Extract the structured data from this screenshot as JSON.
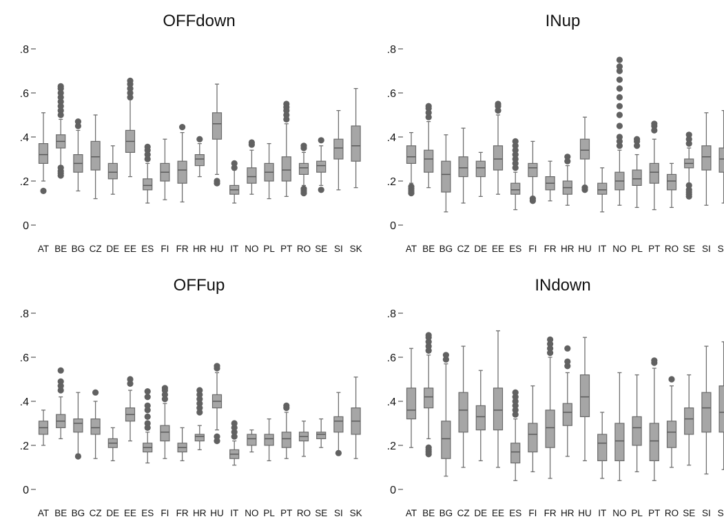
{
  "chart_data": [
    {
      "type": "box",
      "title": "OFFdown",
      "categories": [
        "AT",
        "BE",
        "BG",
        "CZ",
        "DE",
        "EE",
        "ES",
        "FI",
        "FR",
        "HR",
        "HU",
        "IT",
        "NO",
        "PL",
        "PT",
        "RO",
        "SE",
        "SI",
        "SK"
      ],
      "ylim": [
        0,
        0.8
      ],
      "yticks": [
        0,
        0.2,
        0.4,
        0.6,
        0.8
      ],
      "ytick_labels": [
        "0",
        ".2",
        ".4",
        ".6",
        ".8"
      ],
      "grid": false,
      "box_color": "#a6a6a6",
      "outlier_color": "#616161",
      "boxes": [
        {
          "cat": "AT",
          "low": 0.2,
          "q1": 0.28,
          "med": 0.32,
          "q3": 0.37,
          "high": 0.51,
          "out": [
            0.155
          ]
        },
        {
          "cat": "BE",
          "low": 0.27,
          "q1": 0.35,
          "med": 0.38,
          "q3": 0.41,
          "high": 0.48,
          "out": [
            0.5,
            0.52,
            0.54,
            0.56,
            0.58,
            0.6,
            0.62,
            0.63,
            0.26,
            0.245,
            0.235,
            0.225
          ]
        },
        {
          "cat": "BG",
          "low": 0.155,
          "q1": 0.24,
          "med": 0.28,
          "q3": 0.32,
          "high": 0.43,
          "out": [
            0.45,
            0.47
          ]
        },
        {
          "cat": "CZ",
          "low": 0.12,
          "q1": 0.25,
          "med": 0.31,
          "q3": 0.38,
          "high": 0.5,
          "out": []
        },
        {
          "cat": "DE",
          "low": 0.14,
          "q1": 0.21,
          "med": 0.24,
          "q3": 0.28,
          "high": 0.36,
          "out": []
        },
        {
          "cat": "EE",
          "low": 0.22,
          "q1": 0.33,
          "med": 0.38,
          "q3": 0.43,
          "high": 0.57,
          "out": [
            0.58,
            0.6,
            0.62,
            0.64,
            0.655
          ]
        },
        {
          "cat": "ES",
          "low": 0.1,
          "q1": 0.16,
          "med": 0.18,
          "q3": 0.21,
          "high": 0.28,
          "out": [
            0.3,
            0.32,
            0.34,
            0.355
          ]
        },
        {
          "cat": "FI",
          "low": 0.115,
          "q1": 0.2,
          "med": 0.24,
          "q3": 0.28,
          "high": 0.39,
          "out": []
        },
        {
          "cat": "FR",
          "low": 0.105,
          "q1": 0.19,
          "med": 0.25,
          "q3": 0.29,
          "high": 0.42,
          "out": [
            0.445
          ]
        },
        {
          "cat": "HR",
          "low": 0.22,
          "q1": 0.27,
          "med": 0.3,
          "q3": 0.32,
          "high": 0.37,
          "out": [
            0.39
          ]
        },
        {
          "cat": "HU",
          "low": 0.23,
          "q1": 0.39,
          "med": 0.46,
          "q3": 0.51,
          "high": 0.64,
          "out": [
            0.2,
            0.19
          ]
        },
        {
          "cat": "IT",
          "low": 0.1,
          "q1": 0.14,
          "med": 0.16,
          "q3": 0.18,
          "high": 0.25,
          "out": [
            0.26,
            0.28
          ]
        },
        {
          "cat": "NO",
          "low": 0.14,
          "q1": 0.19,
          "med": 0.22,
          "q3": 0.26,
          "high": 0.34,
          "out": [
            0.365,
            0.375
          ]
        },
        {
          "cat": "PL",
          "low": 0.12,
          "q1": 0.2,
          "med": 0.24,
          "q3": 0.28,
          "high": 0.37,
          "out": []
        },
        {
          "cat": "PT",
          "low": 0.13,
          "q1": 0.2,
          "med": 0.25,
          "q3": 0.31,
          "high": 0.46,
          "out": [
            0.48,
            0.5,
            0.52,
            0.535,
            0.55
          ]
        },
        {
          "cat": "RO",
          "low": 0.18,
          "q1": 0.23,
          "med": 0.26,
          "q3": 0.28,
          "high": 0.33,
          "out": [
            0.35,
            0.36,
            0.165,
            0.155,
            0.145
          ]
        },
        {
          "cat": "SE",
          "low": 0.18,
          "q1": 0.24,
          "med": 0.27,
          "q3": 0.29,
          "high": 0.36,
          "out": [
            0.385,
            0.16
          ]
        },
        {
          "cat": "SI",
          "low": 0.16,
          "q1": 0.3,
          "med": 0.35,
          "q3": 0.39,
          "high": 0.52,
          "out": []
        },
        {
          "cat": "SK",
          "low": 0.17,
          "q1": 0.29,
          "med": 0.36,
          "q3": 0.45,
          "high": 0.62,
          "out": []
        }
      ]
    },
    {
      "type": "box",
      "title": "INup",
      "categories": [
        "AT",
        "BE",
        "BG",
        "CZ",
        "DE",
        "EE",
        "ES",
        "FI",
        "FR",
        "HR",
        "HU",
        "IT",
        "NO",
        "PL",
        "PT",
        "RO",
        "SE",
        "SI",
        "SK"
      ],
      "ylim": [
        0,
        0.8
      ],
      "yticks": [
        0,
        0.2,
        0.4,
        0.6,
        0.8
      ],
      "ytick_labels": [
        "0",
        ".2",
        ".4",
        ".6",
        ".8"
      ],
      "grid": false,
      "box_color": "#a6a6a6",
      "outlier_color": "#616161",
      "boxes": [
        {
          "cat": "AT",
          "low": 0.19,
          "q1": 0.28,
          "med": 0.31,
          "q3": 0.36,
          "high": 0.42,
          "out": [
            0.175,
            0.165,
            0.155,
            0.145
          ]
        },
        {
          "cat": "BE",
          "low": 0.17,
          "q1": 0.24,
          "med": 0.3,
          "q3": 0.34,
          "high": 0.47,
          "out": [
            0.49,
            0.51,
            0.53,
            0.54
          ]
        },
        {
          "cat": "BG",
          "low": 0.06,
          "q1": 0.15,
          "med": 0.23,
          "q3": 0.29,
          "high": 0.41,
          "out": []
        },
        {
          "cat": "CZ",
          "low": 0.1,
          "q1": 0.22,
          "med": 0.26,
          "q3": 0.31,
          "high": 0.44,
          "out": []
        },
        {
          "cat": "DE",
          "low": 0.13,
          "q1": 0.22,
          "med": 0.26,
          "q3": 0.29,
          "high": 0.33,
          "out": []
        },
        {
          "cat": "EE",
          "low": 0.14,
          "q1": 0.25,
          "med": 0.3,
          "q3": 0.36,
          "high": 0.5,
          "out": [
            0.52,
            0.54,
            0.55
          ]
        },
        {
          "cat": "ES",
          "low": 0.07,
          "q1": 0.14,
          "med": 0.16,
          "q3": 0.19,
          "high": 0.24,
          "out": [
            0.26,
            0.28,
            0.3,
            0.32,
            0.34,
            0.36,
            0.38
          ]
        },
        {
          "cat": "FI",
          "low": 0.13,
          "q1": 0.22,
          "med": 0.26,
          "q3": 0.28,
          "high": 0.38,
          "out": [
            0.12,
            0.11
          ]
        },
        {
          "cat": "FR",
          "low": 0.11,
          "q1": 0.16,
          "med": 0.19,
          "q3": 0.22,
          "high": 0.29,
          "out": []
        },
        {
          "cat": "HR",
          "low": 0.09,
          "q1": 0.14,
          "med": 0.17,
          "q3": 0.2,
          "high": 0.27,
          "out": [
            0.29,
            0.31
          ]
        },
        {
          "cat": "HU",
          "low": 0.18,
          "q1": 0.3,
          "med": 0.34,
          "q3": 0.39,
          "high": 0.49,
          "out": [
            0.17,
            0.16
          ]
        },
        {
          "cat": "IT",
          "low": 0.06,
          "q1": 0.14,
          "med": 0.16,
          "q3": 0.19,
          "high": 0.26,
          "out": []
        },
        {
          "cat": "NO",
          "low": 0.09,
          "q1": 0.16,
          "med": 0.2,
          "q3": 0.24,
          "high": 0.34,
          "out": [
            0.36,
            0.38,
            0.4,
            0.45,
            0.5,
            0.54,
            0.58,
            0.62,
            0.66,
            0.7,
            0.72,
            0.75
          ]
        },
        {
          "cat": "PL",
          "low": 0.08,
          "q1": 0.18,
          "med": 0.21,
          "q3": 0.25,
          "high": 0.32,
          "out": [
            0.36,
            0.38,
            0.39
          ]
        },
        {
          "cat": "PT",
          "low": 0.07,
          "q1": 0.19,
          "med": 0.24,
          "q3": 0.28,
          "high": 0.39,
          "out": [
            0.43,
            0.45,
            0.46
          ]
        },
        {
          "cat": "RO",
          "low": 0.08,
          "q1": 0.16,
          "med": 0.2,
          "q3": 0.23,
          "high": 0.28,
          "out": []
        },
        {
          "cat": "SE",
          "low": 0.19,
          "q1": 0.26,
          "med": 0.28,
          "q3": 0.3,
          "high": 0.35,
          "out": [
            0.37,
            0.39,
            0.41,
            0.18,
            0.16,
            0.15,
            0.14,
            0.13
          ]
        },
        {
          "cat": "SI",
          "low": 0.09,
          "q1": 0.25,
          "med": 0.31,
          "q3": 0.36,
          "high": 0.51,
          "out": []
        },
        {
          "cat": "SK",
          "low": 0.1,
          "q1": 0.24,
          "med": 0.3,
          "q3": 0.35,
          "high": 0.52,
          "out": []
        }
      ]
    },
    {
      "type": "box",
      "title": "OFFup",
      "categories": [
        "AT",
        "BE",
        "BG",
        "CZ",
        "DE",
        "EE",
        "ES",
        "FI",
        "FR",
        "HR",
        "HU",
        "IT",
        "NO",
        "PL",
        "PT",
        "RO",
        "SE",
        "SI",
        "SK"
      ],
      "ylim": [
        0,
        0.8
      ],
      "yticks": [
        0,
        0.2,
        0.4,
        0.6,
        0.8
      ],
      "ytick_labels": [
        "0",
        ".2",
        ".4",
        ".6",
        ".8"
      ],
      "grid": false,
      "box_color": "#a6a6a6",
      "outlier_color": "#616161",
      "boxes": [
        {
          "cat": "AT",
          "low": 0.2,
          "q1": 0.25,
          "med": 0.28,
          "q3": 0.31,
          "high": 0.36,
          "out": []
        },
        {
          "cat": "BE",
          "low": 0.23,
          "q1": 0.28,
          "med": 0.31,
          "q3": 0.34,
          "high": 0.42,
          "out": [
            0.45,
            0.47,
            0.49,
            0.54
          ]
        },
        {
          "cat": "BG",
          "low": 0.16,
          "q1": 0.26,
          "med": 0.3,
          "q3": 0.32,
          "high": 0.44,
          "out": [
            0.15
          ]
        },
        {
          "cat": "CZ",
          "low": 0.14,
          "q1": 0.25,
          "med": 0.28,
          "q3": 0.32,
          "high": 0.4,
          "out": [
            0.44
          ]
        },
        {
          "cat": "DE",
          "low": 0.13,
          "q1": 0.19,
          "med": 0.21,
          "q3": 0.23,
          "high": 0.28,
          "out": []
        },
        {
          "cat": "EE",
          "low": 0.22,
          "q1": 0.31,
          "med": 0.34,
          "q3": 0.37,
          "high": 0.45,
          "out": [
            0.48,
            0.5
          ]
        },
        {
          "cat": "ES",
          "low": 0.12,
          "q1": 0.17,
          "med": 0.19,
          "q3": 0.21,
          "high": 0.26,
          "out": [
            0.28,
            0.3,
            0.33,
            0.36,
            0.38,
            0.42,
            0.445
          ]
        },
        {
          "cat": "FI",
          "low": 0.14,
          "q1": 0.22,
          "med": 0.26,
          "q3": 0.29,
          "high": 0.39,
          "out": [
            0.41,
            0.43,
            0.45,
            0.46
          ]
        },
        {
          "cat": "FR",
          "low": 0.13,
          "q1": 0.17,
          "med": 0.19,
          "q3": 0.21,
          "high": 0.28,
          "out": []
        },
        {
          "cat": "HR",
          "low": 0.18,
          "q1": 0.22,
          "med": 0.24,
          "q3": 0.25,
          "high": 0.29,
          "out": [
            0.35,
            0.37,
            0.39,
            0.41,
            0.43,
            0.45
          ]
        },
        {
          "cat": "HU",
          "low": 0.27,
          "q1": 0.37,
          "med": 0.4,
          "q3": 0.43,
          "high": 0.53,
          "out": [
            0.55,
            0.56,
            0.24,
            0.22
          ]
        },
        {
          "cat": "IT",
          "low": 0.11,
          "q1": 0.14,
          "med": 0.16,
          "q3": 0.18,
          "high": 0.22,
          "out": [
            0.24,
            0.26,
            0.28,
            0.3
          ]
        },
        {
          "cat": "NO",
          "low": 0.17,
          "q1": 0.2,
          "med": 0.23,
          "q3": 0.25,
          "high": 0.27,
          "out": []
        },
        {
          "cat": "PL",
          "low": 0.13,
          "q1": 0.2,
          "med": 0.23,
          "q3": 0.25,
          "high": 0.32,
          "out": []
        },
        {
          "cat": "PT",
          "low": 0.14,
          "q1": 0.19,
          "med": 0.23,
          "q3": 0.26,
          "high": 0.35,
          "out": [
            0.37,
            0.38
          ]
        },
        {
          "cat": "RO",
          "low": 0.15,
          "q1": 0.22,
          "med": 0.24,
          "q3": 0.26,
          "high": 0.31,
          "out": []
        },
        {
          "cat": "SE",
          "low": 0.19,
          "q1": 0.23,
          "med": 0.25,
          "q3": 0.26,
          "high": 0.32,
          "out": []
        },
        {
          "cat": "SI",
          "low": 0.17,
          "q1": 0.26,
          "med": 0.31,
          "q3": 0.33,
          "high": 0.44,
          "out": [
            0.165
          ]
        },
        {
          "cat": "SK",
          "low": 0.14,
          "q1": 0.25,
          "med": 0.31,
          "q3": 0.37,
          "high": 0.51,
          "out": []
        }
      ]
    },
    {
      "type": "box",
      "title": "INdown",
      "categories": [
        "AT",
        "BE",
        "BG",
        "CZ",
        "DE",
        "EE",
        "ES",
        "FI",
        "FR",
        "HR",
        "HU",
        "IT",
        "NO",
        "PL",
        "PT",
        "RO",
        "SE",
        "SI",
        "SK"
      ],
      "ylim": [
        0,
        0.8
      ],
      "yticks": [
        0,
        0.2,
        0.4,
        0.6,
        0.8
      ],
      "ytick_labels": [
        "0",
        ".2",
        ".4",
        ".6",
        ".8"
      ],
      "grid": false,
      "box_color": "#a6a6a6",
      "outlier_color": "#616161",
      "boxes": [
        {
          "cat": "AT",
          "low": 0.19,
          "q1": 0.32,
          "med": 0.36,
          "q3": 0.46,
          "high": 0.64,
          "out": []
        },
        {
          "cat": "BE",
          "low": 0.23,
          "q1": 0.37,
          "med": 0.42,
          "q3": 0.46,
          "high": 0.61,
          "out": [
            0.63,
            0.65,
            0.67,
            0.69,
            0.7,
            0.19,
            0.18,
            0.17,
            0.16
          ]
        },
        {
          "cat": "BG",
          "low": 0.06,
          "q1": 0.14,
          "med": 0.23,
          "q3": 0.31,
          "high": 0.57,
          "out": [
            0.59,
            0.61
          ]
        },
        {
          "cat": "CZ",
          "low": 0.1,
          "q1": 0.26,
          "med": 0.36,
          "q3": 0.44,
          "high": 0.65,
          "out": []
        },
        {
          "cat": "DE",
          "low": 0.13,
          "q1": 0.27,
          "med": 0.33,
          "q3": 0.38,
          "high": 0.54,
          "out": []
        },
        {
          "cat": "EE",
          "low": 0.1,
          "q1": 0.27,
          "med": 0.36,
          "q3": 0.46,
          "high": 0.72,
          "out": []
        },
        {
          "cat": "ES",
          "low": 0.04,
          "q1": 0.12,
          "med": 0.17,
          "q3": 0.21,
          "high": 0.32,
          "out": [
            0.34,
            0.36,
            0.38,
            0.4,
            0.42,
            0.44
          ]
        },
        {
          "cat": "FI",
          "low": 0.08,
          "q1": 0.17,
          "med": 0.25,
          "q3": 0.3,
          "high": 0.47,
          "out": []
        },
        {
          "cat": "FR",
          "low": 0.05,
          "q1": 0.19,
          "med": 0.28,
          "q3": 0.36,
          "high": 0.6,
          "out": [
            0.62,
            0.64,
            0.66,
            0.68
          ]
        },
        {
          "cat": "HR",
          "low": 0.15,
          "q1": 0.29,
          "med": 0.35,
          "q3": 0.39,
          "high": 0.53,
          "out": [
            0.56,
            0.58,
            0.64
          ]
        },
        {
          "cat": "HU",
          "low": 0.13,
          "q1": 0.33,
          "med": 0.42,
          "q3": 0.52,
          "high": 0.69,
          "out": []
        },
        {
          "cat": "IT",
          "low": 0.05,
          "q1": 0.13,
          "med": 0.21,
          "q3": 0.25,
          "high": 0.35,
          "out": []
        },
        {
          "cat": "NO",
          "low": 0.04,
          "q1": 0.13,
          "med": 0.22,
          "q3": 0.3,
          "high": 0.53,
          "out": []
        },
        {
          "cat": "PL",
          "low": 0.08,
          "q1": 0.2,
          "med": 0.28,
          "q3": 0.33,
          "high": 0.52,
          "out": []
        },
        {
          "cat": "PT",
          "low": 0.04,
          "q1": 0.13,
          "med": 0.22,
          "q3": 0.3,
          "high": 0.55,
          "out": [
            0.575,
            0.585
          ]
        },
        {
          "cat": "RO",
          "low": 0.1,
          "q1": 0.19,
          "med": 0.26,
          "q3": 0.31,
          "high": 0.47,
          "out": [
            0.5
          ]
        },
        {
          "cat": "SE",
          "low": 0.11,
          "q1": 0.25,
          "med": 0.32,
          "q3": 0.37,
          "high": 0.52,
          "out": []
        },
        {
          "cat": "SI",
          "low": 0.07,
          "q1": 0.26,
          "med": 0.37,
          "q3": 0.44,
          "high": 0.65,
          "out": []
        },
        {
          "cat": "SK",
          "low": 0.09,
          "q1": 0.26,
          "med": 0.35,
          "q3": 0.47,
          "high": 0.67,
          "out": []
        }
      ]
    }
  ]
}
